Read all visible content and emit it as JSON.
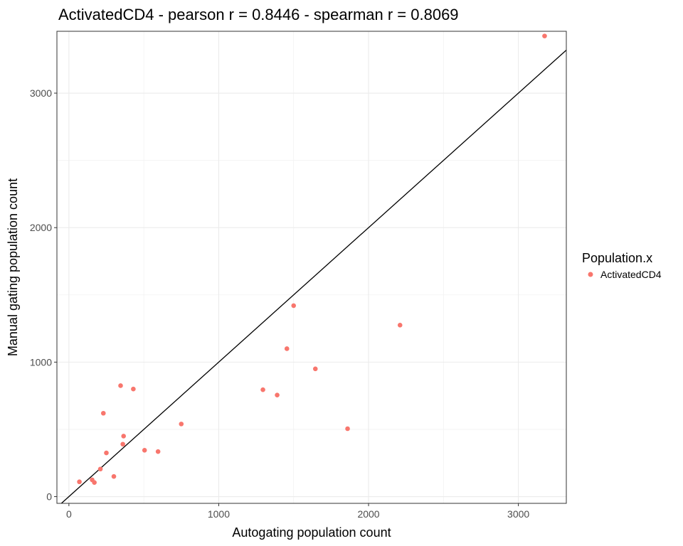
{
  "chart_data": {
    "type": "scatter",
    "title": "ActivatedCD4 - pearson r = 0.8446 - spearman r = 0.8069",
    "xlabel": "Autogating population count",
    "ylabel": "Manual gating population count",
    "xlim": [
      -80,
      3320
    ],
    "ylim": [
      -50,
      3460
    ],
    "x_ticks": [
      0,
      1000,
      2000,
      3000
    ],
    "x_tick_labels": [
      "0",
      "1000",
      "2000",
      "3000"
    ],
    "y_ticks": [
      0,
      1000,
      2000,
      3000
    ],
    "y_tick_labels": [
      "0",
      "1000",
      "2000",
      "3000"
    ],
    "grid": true,
    "reference_line": {
      "type": "identity",
      "slope": 1,
      "intercept": 0,
      "color": "#000000"
    },
    "legend": {
      "title": "Population.x",
      "placement": "right",
      "entries": [
        {
          "label": "ActivatedCD4",
          "color": "#F8766D"
        }
      ]
    },
    "series": [
      {
        "name": "ActivatedCD4",
        "color": "#F8766D",
        "points": [
          {
            "x": 3175,
            "y": 3425
          },
          {
            "x": 2210,
            "y": 1275
          },
          {
            "x": 1500,
            "y": 1420
          },
          {
            "x": 1455,
            "y": 1100
          },
          {
            "x": 1645,
            "y": 950
          },
          {
            "x": 1860,
            "y": 505
          },
          {
            "x": 1295,
            "y": 795
          },
          {
            "x": 1390,
            "y": 755
          },
          {
            "x": 750,
            "y": 540
          },
          {
            "x": 595,
            "y": 335
          },
          {
            "x": 505,
            "y": 345
          },
          {
            "x": 430,
            "y": 800
          },
          {
            "x": 345,
            "y": 825
          },
          {
            "x": 230,
            "y": 620
          },
          {
            "x": 365,
            "y": 450
          },
          {
            "x": 360,
            "y": 390
          },
          {
            "x": 250,
            "y": 325
          },
          {
            "x": 210,
            "y": 205
          },
          {
            "x": 300,
            "y": 150
          },
          {
            "x": 155,
            "y": 125
          },
          {
            "x": 170,
            "y": 105
          },
          {
            "x": 70,
            "y": 110
          }
        ]
      }
    ]
  }
}
